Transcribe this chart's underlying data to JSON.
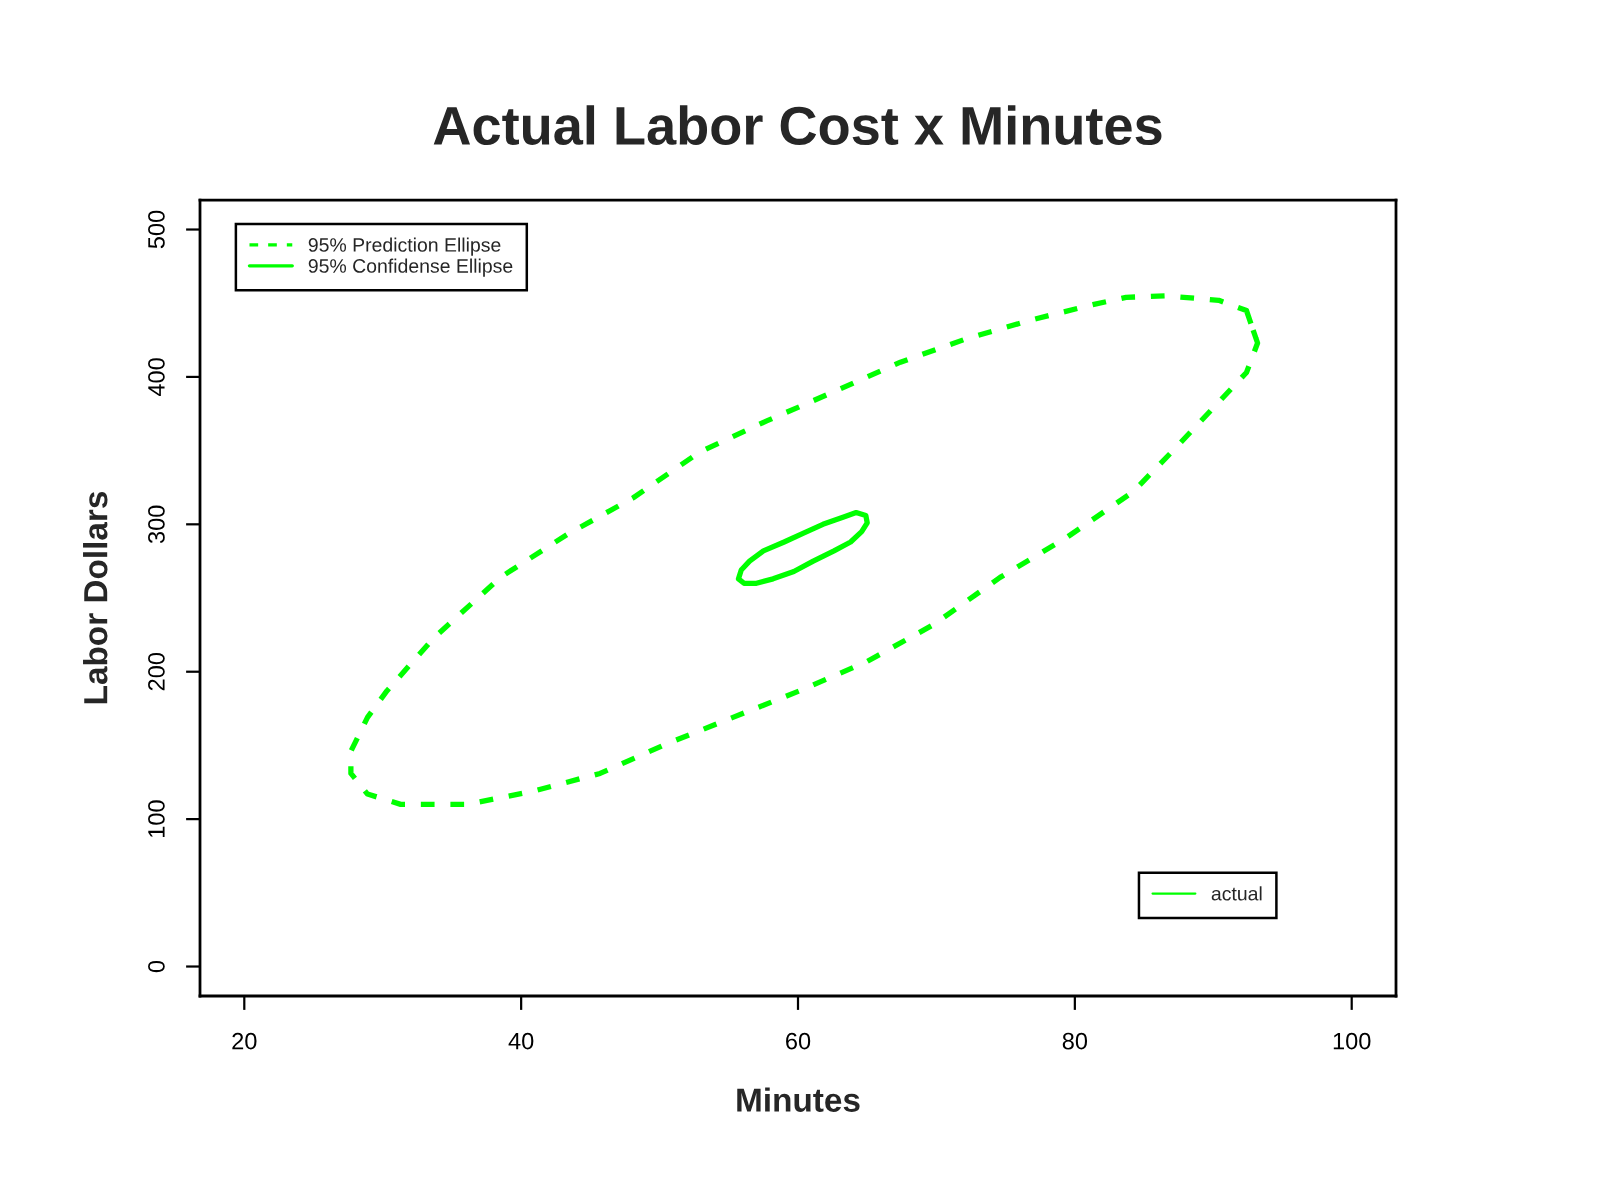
{
  "chart_data": {
    "type": "line",
    "title": "Actual Labor Cost x Minutes",
    "xlabel": "Minutes",
    "ylabel": "Labor Dollars",
    "xlim": [
      16.8,
      103.2
    ],
    "xticks": [
      20,
      40,
      60,
      80,
      100
    ],
    "ylim": [
      -20,
      520
    ],
    "yticks": [
      0,
      100,
      200,
      300,
      400,
      500
    ],
    "grid": false,
    "legend": [
      "top left",
      "bottom right"
    ],
    "series": [
      {
        "name": "95% Prediction Ellipse",
        "line_style": "dashed",
        "color": "#00ff00",
        "x": [
          93.2,
          92.4,
          90.4,
          86.6,
          83.7,
          81.3,
          77.0,
          72.2,
          67.4,
          62.6,
          57.7,
          52.9,
          48.1,
          43.3,
          38.5,
          33.7,
          30.3,
          28.9,
          27.7,
          27.7,
          28.9,
          31.3,
          36.1,
          40.9,
          45.7,
          50.5,
          55.3,
          60.1,
          65.0,
          69.8,
          74.6,
          79.4,
          84.2,
          87.5,
          90.4,
          92.4,
          93.2,
          92.4
        ],
        "values": [
          423,
          445,
          452,
          455,
          454,
          449,
          439,
          426,
          410,
          390,
          370,
          349,
          318,
          293,
          264,
          223,
          187,
          169,
          146,
          131,
          117,
          110,
          110,
          119,
          131,
          151,
          169,
          187,
          207,
          232,
          264,
          291,
          322,
          354,
          383,
          403,
          423,
          445
        ]
      },
      {
        "name": "95% Confidense Ellipse",
        "line_style": "solid",
        "color": "#00ff00",
        "x": [
          55.7,
          55.9,
          56.5,
          57.5,
          59.0,
          60.4,
          61.8,
          63.3,
          64.2,
          64.9,
          65.0,
          64.6,
          63.8,
          62.6,
          61.1,
          59.7,
          58.2,
          57.0,
          56.1,
          55.7,
          55.9
        ],
        "values": [
          263,
          269,
          275,
          282,
          288,
          294,
          300,
          305,
          308,
          306,
          301,
          295,
          288,
          282,
          275,
          268,
          263,
          260,
          260,
          263,
          269
        ]
      },
      {
        "name": "actual",
        "line_style": "solid",
        "color": "#00ff00"
      }
    ]
  }
}
